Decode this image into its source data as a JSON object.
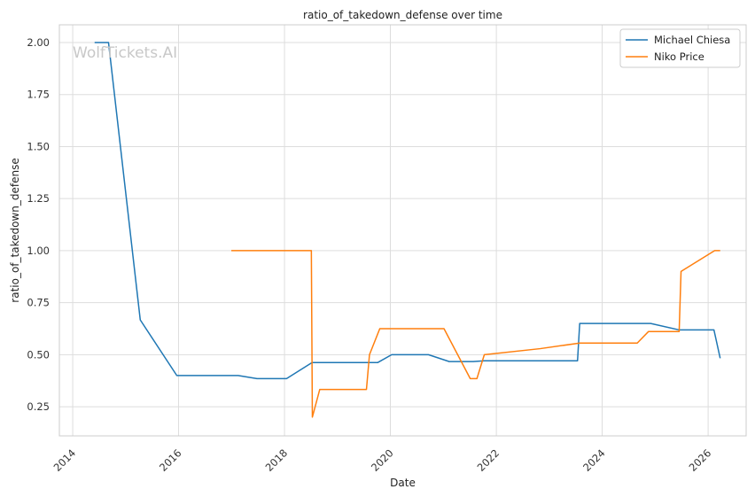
{
  "chart_data": {
    "type": "line",
    "title": "ratio_of_takedown_defense over time",
    "xlabel": "Date",
    "ylabel": "ratio_of_takedown_defense",
    "watermark": "WolfTickets.AI",
    "x_range": [
      "2013-10-01",
      "2026-09-20"
    ],
    "ylim": [
      0.11,
      2.085
    ],
    "x_ticks": [
      "2014",
      "2016",
      "2018",
      "2020",
      "2022",
      "2024",
      "2026"
    ],
    "y_ticks": [
      "0.25",
      "0.50",
      "0.75",
      "1.00",
      "1.25",
      "1.50",
      "1.75",
      "2.00"
    ],
    "grid": true,
    "legend_position": "top-right",
    "series": [
      {
        "name": "Michael Chiesa",
        "color": "#1f77b4",
        "points": [
          [
            "2014-06-01",
            2.0
          ],
          [
            "2014-09-05",
            2.0
          ],
          [
            "2015-04-12",
            0.667
          ],
          [
            "2015-12-20",
            0.4
          ],
          [
            "2017-02-15",
            0.4
          ],
          [
            "2017-06-25",
            0.385
          ],
          [
            "2018-01-15",
            0.385
          ],
          [
            "2018-07-10",
            0.462
          ],
          [
            "2019-10-05",
            0.462
          ],
          [
            "2020-01-10",
            0.5
          ],
          [
            "2020-09-20",
            0.5
          ],
          [
            "2021-02-10",
            0.467
          ],
          [
            "2021-07-25",
            0.467
          ],
          [
            "2021-10-10",
            0.471
          ],
          [
            "2023-07-15",
            0.471
          ],
          [
            "2023-07-30",
            0.65
          ],
          [
            "2024-12-01",
            0.65
          ],
          [
            "2025-06-15",
            0.619
          ],
          [
            "2026-02-10",
            0.619
          ],
          [
            "2026-03-25",
            0.483
          ]
        ]
      },
      {
        "name": "Niko Price",
        "color": "#ff7f0e",
        "points": [
          [
            "2016-12-30",
            1.0
          ],
          [
            "2018-07-05",
            1.0
          ],
          [
            "2018-07-12",
            0.2
          ],
          [
            "2018-09-01",
            0.333
          ],
          [
            "2019-07-20",
            0.333
          ],
          [
            "2019-08-10",
            0.5
          ],
          [
            "2019-10-20",
            0.625
          ],
          [
            "2021-01-05",
            0.625
          ],
          [
            "2021-07-05",
            0.385
          ],
          [
            "2021-08-20",
            0.385
          ],
          [
            "2021-10-10",
            0.5
          ],
          [
            "2022-10-30",
            0.529
          ],
          [
            "2023-07-30",
            0.556
          ],
          [
            "2024-08-30",
            0.556
          ],
          [
            "2024-11-15",
            0.611
          ],
          [
            "2025-06-15",
            0.611
          ],
          [
            "2025-06-28",
            0.9
          ],
          [
            "2026-02-15",
            1.0
          ],
          [
            "2026-03-25",
            1.0
          ]
        ]
      }
    ]
  }
}
